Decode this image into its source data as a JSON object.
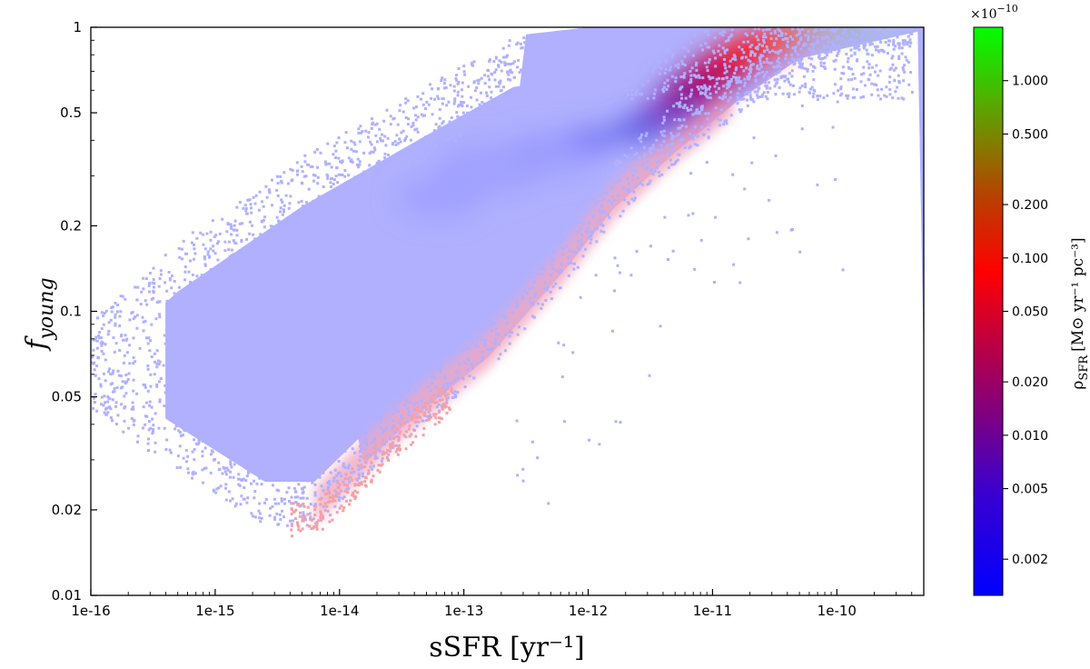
{
  "chart_data": {
    "type": "heatmap",
    "title": "",
    "xlabel": "sSFR [yr⁻¹]",
    "ylabel": "f_young",
    "ylabel_main": "f",
    "ylabel_sub": "young",
    "x_scale": "log",
    "y_scale": "log",
    "xlim": [
      1e-16,
      5e-10
    ],
    "ylim": [
      0.01,
      1
    ],
    "x_ticks": [
      1e-16,
      1e-15,
      1e-14,
      1e-13,
      1e-12,
      1e-11,
      1e-10
    ],
    "x_tick_labels": [
      "1e-16",
      "1e-15",
      "1e-14",
      "1e-13",
      "1e-12",
      "1e-11",
      "1e-10"
    ],
    "y_ticks": [
      0.01,
      0.02,
      0.05,
      0.1,
      0.2,
      0.5,
      1
    ],
    "y_tick_labels": [
      "0.01",
      "0.02",
      "0.05",
      "0.1",
      "0.2",
      "0.5",
      "1"
    ],
    "grid": false,
    "colorbar": {
      "label": "ρSFR [M⊙ yr⁻¹ pc⁻³]",
      "label_main": "ρ",
      "label_sub": "SFR",
      "label_units": "[M⊙ yr⁻¹ pc⁻³]",
      "multiplier": "×10⁻¹⁰",
      "multiplier_base": "×10",
      "multiplier_exp": "−10",
      "scale": "log",
      "range": [
        0.00125,
        2.0
      ],
      "ticks": [
        0.002,
        0.005,
        0.01,
        0.02,
        0.05,
        0.1,
        0.2,
        0.5,
        1.0
      ],
      "tick_labels": [
        "0.002",
        "0.005",
        "0.010",
        "0.020",
        "0.050",
        "0.100",
        "0.200",
        "0.500",
        "1.000"
      ],
      "colors": [
        "#0000ff",
        "#4000cc",
        "#800080",
        "#d00040",
        "#ff0000",
        "#c04000",
        "#808000",
        "#40c000",
        "#00ff00"
      ]
    },
    "features": [
      {
        "name": "broad-distribution",
        "color": "#b0b0ff",
        "description_x_range": [
          1e-16,
          5e-10
        ]
      },
      {
        "name": "dense-ridge",
        "color": "#ff0000",
        "peak_x": 1e-11,
        "peak_y": 0.75
      }
    ]
  }
}
